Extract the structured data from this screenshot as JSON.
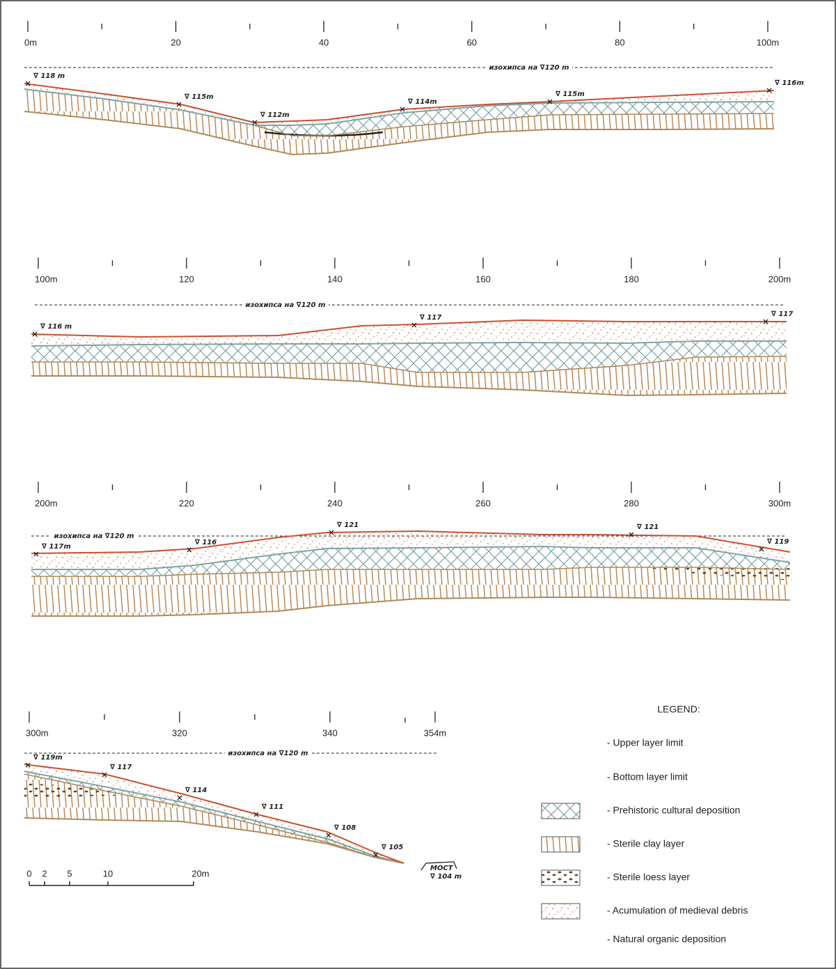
{
  "profiles": [
    {
      "ruler_labels": [
        "0m",
        "20",
        "40",
        "60",
        "80",
        "100m"
      ],
      "datum": "изохипса на ∇120 m",
      "elevations": [
        "∇ 118 m",
        "∇ 115m",
        "∇ 112m",
        "∇ 114m",
        "∇ 115m",
        "∇ 116m"
      ]
    },
    {
      "ruler_labels": [
        "100m",
        "120",
        "140",
        "160",
        "180",
        "200m"
      ],
      "datum": "изохипса на ∇120 m",
      "elevations": [
        "∇ 116 m",
        "∇ 117",
        "∇ 117"
      ]
    },
    {
      "ruler_labels": [
        "200m",
        "220",
        "240",
        "260",
        "280",
        "300m"
      ],
      "datum": "изохипса на ∇120 m",
      "elevations": [
        "∇ 117m",
        "∇ 116",
        "∇ 121",
        "∇ 121",
        "∇ 119"
      ]
    },
    {
      "ruler_labels": [
        "300m",
        "320",
        "340",
        "354m"
      ],
      "datum": "изохипса на ∇120 m",
      "elevations": [
        "∇ 119m",
        "∇ 117",
        "∇ 114",
        "∇ 111",
        "∇ 108",
        "∇ 105"
      ]
    }
  ],
  "bridge": [
    "МОСТ",
    "∇ 104 m"
  ],
  "scale_bar": [
    "0",
    "2",
    "5",
    "10",
    "20m"
  ],
  "legend": {
    "title": "LEGEND:",
    "items": [
      "- Upper layer limit",
      "- Bottom layer limit",
      "- Prehistoric cultural deposition",
      "- Sterile clay layer",
      "- Sterile loess layer",
      "- Acumulation of medieval debris",
      "- Natural organic deposition"
    ]
  }
}
